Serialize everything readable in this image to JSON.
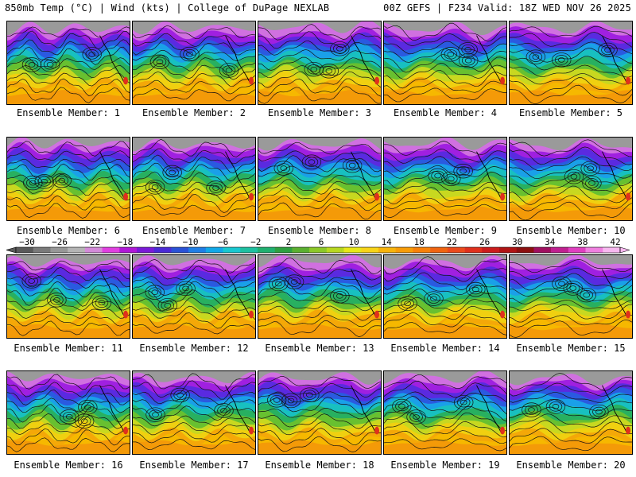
{
  "header": {
    "left": "850mb Temp (°C) | Wind (kts) | College of DuPage NEXLAB",
    "right": "00Z GEFS | F234 Valid: 18Z WED NOV 26 2025"
  },
  "members": [
    "Ensemble Member: 1",
    "Ensemble Member: 2",
    "Ensemble Member: 3",
    "Ensemble Member: 4",
    "Ensemble Member: 5",
    "Ensemble Member: 6",
    "Ensemble Member: 7",
    "Ensemble Member: 8",
    "Ensemble Member: 9",
    "Ensemble Member: 10",
    "Ensemble Member: 11",
    "Ensemble Member: 12",
    "Ensemble Member: 13",
    "Ensemble Member: 14",
    "Ensemble Member: 15",
    "Ensemble Member: 16",
    "Ensemble Member: 17",
    "Ensemble Member: 18",
    "Ensemble Member: 19",
    "Ensemble Member: 20"
  ],
  "colorbar": {
    "ticks": [
      "-30",
      "-26",
      "-22",
      "-18",
      "-14",
      "-10",
      "-6",
      "-2",
      "2",
      "6",
      "10",
      "14",
      "18",
      "22",
      "26",
      "30",
      "34",
      "38",
      "42"
    ],
    "colors": [
      "#5a5a5a",
      "#7a7a7a",
      "#979797",
      "#b4b4b4",
      "#d38ad8",
      "#e040e0",
      "#b018d8",
      "#7a1ad8",
      "#4a2ad6",
      "#2a52d6",
      "#1f7ee6",
      "#12a8e8",
      "#18c8d0",
      "#1ec0a0",
      "#20b070",
      "#2ea040",
      "#5bb030",
      "#8cc828",
      "#b8d820",
      "#e8e818",
      "#f8d418",
      "#f8b40c",
      "#f89c08",
      "#f88008",
      "#f06410",
      "#ec4a1c",
      "#e0301c",
      "#cc1c1c",
      "#b01414",
      "#8c1010",
      "#a01060",
      "#c02090",
      "#e040c0",
      "#f080e0",
      "#f8b8f0"
    ]
  }
}
